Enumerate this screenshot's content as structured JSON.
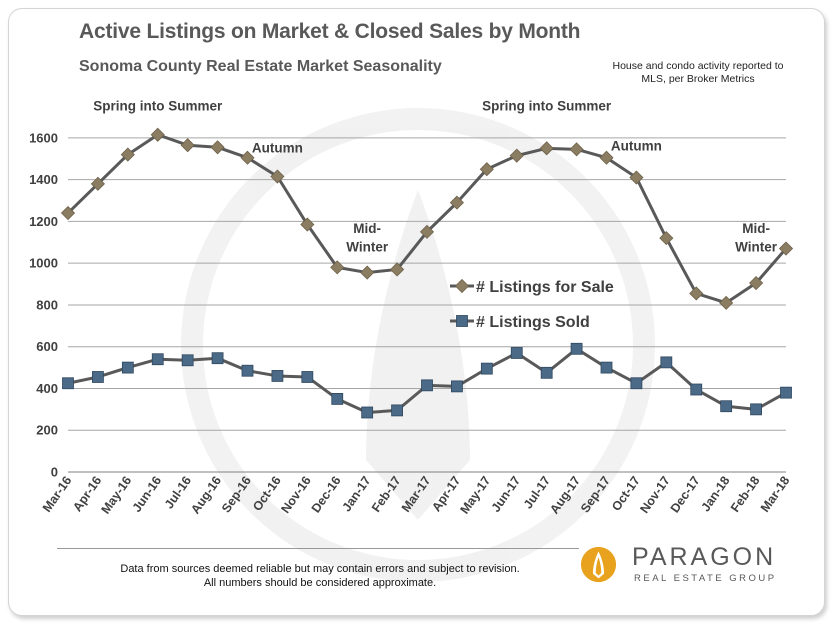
{
  "chart_data": {
    "type": "line",
    "title": "Active Listings on Market & Closed Sales by Month",
    "subtitle": "Sonoma County Real Estate Market Seasonality",
    "note": [
      "House and condo activity reported to",
      "MLS, per Broker Metrics"
    ],
    "ylim": [
      0,
      1700
    ],
    "yticks": [
      0,
      200,
      400,
      600,
      800,
      1000,
      1200,
      1400,
      1600
    ],
    "grid": true,
    "legend": "center-right",
    "categories": [
      "Mar-16",
      "Apr-16",
      "May-16",
      "Jun-16",
      "Jul-16",
      "Aug-16",
      "Sep-16",
      "Oct-16",
      "Nov-16",
      "Dec-16",
      "Jan-17",
      "Feb-17",
      "Mar-17",
      "Apr-17",
      "May-17",
      "Jun-17",
      "Jul-17",
      "Aug-17",
      "Sep-17",
      "Oct-17",
      "Nov-17",
      "Dec-17",
      "Jan-18",
      "Feb-18",
      "Mar-18"
    ],
    "series": [
      {
        "name": "# Listings for Sale",
        "color": "#8b7d62",
        "marker": "diamond",
        "values": [
          1240,
          1380,
          1520,
          1615,
          1565,
          1555,
          1505,
          1415,
          1185,
          980,
          955,
          970,
          1150,
          1290,
          1450,
          1515,
          1550,
          1545,
          1505,
          1410,
          1120,
          855,
          810,
          905,
          1070
        ]
      },
      {
        "name": "# Listings Sold",
        "color": "#4a6a88",
        "marker": "square",
        "values": [
          425,
          455,
          500,
          540,
          535,
          545,
          485,
          460,
          455,
          350,
          285,
          295,
          415,
          410,
          495,
          570,
          475,
          590,
          500,
          425,
          525,
          395,
          315,
          300,
          380
        ]
      }
    ],
    "annotations": [
      {
        "text": "Spring into Summer",
        "x": "Jun-16",
        "y": 1730
      },
      {
        "text": "Autumn",
        "x": "Oct-16",
        "y": 1530
      },
      {
        "text": "Mid-",
        "x": "Jan-17",
        "y": 1145
      },
      {
        "text": "Winter",
        "x": "Jan-17",
        "y": 1055
      },
      {
        "text": "Spring into Summer",
        "x": "Jul-17",
        "y": 1730
      },
      {
        "text": "Autumn",
        "x": "Oct-17",
        "y": 1540
      },
      {
        "text": "Mid-",
        "x": "Feb-18",
        "y": 1145
      },
      {
        "text": "Winter",
        "x": "Feb-18",
        "y": 1055
      }
    ]
  },
  "footer": {
    "line1": "Data from sources deemed reliable but may contain errors and subject to revision.",
    "line2": "All numbers should be considered approximate."
  },
  "logo": {
    "name": "PARAGON",
    "tagline": "REAL ESTATE GROUP",
    "mark_color": "#e8a21d"
  }
}
